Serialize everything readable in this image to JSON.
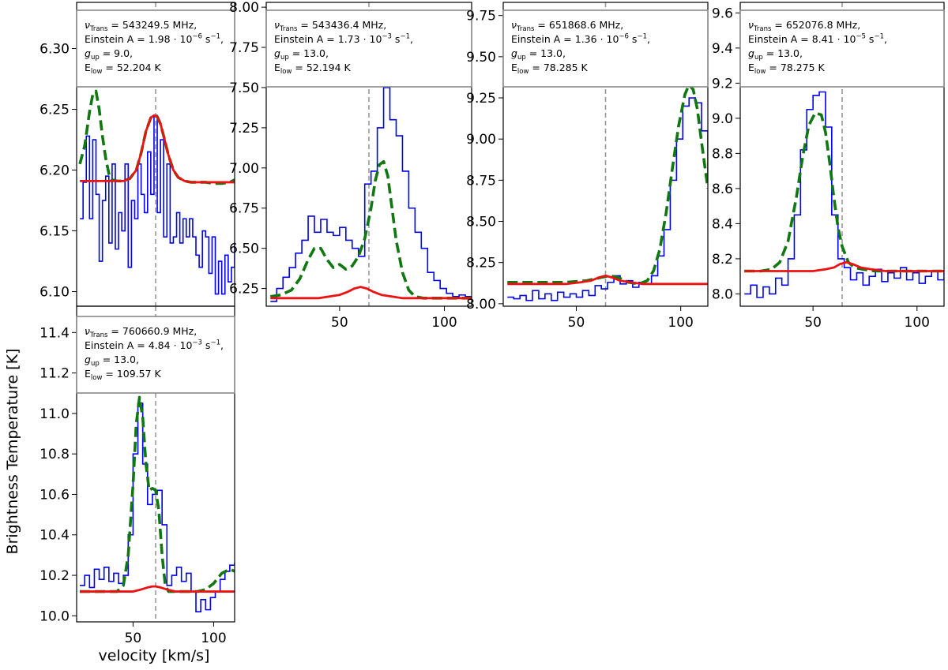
{
  "figure": {
    "ylabel": "Brightness Temperature [K]",
    "xlabel": "velocity [km/s]"
  },
  "colors": {
    "data": "#0000ee",
    "fit_total": "#117711",
    "fit_component": "#ee1111",
    "marker": "#999999",
    "frame": "#000000",
    "infobox_border": "#888888"
  },
  "chart_data": [
    {
      "type": "line",
      "id": "p1",
      "info": {
        "nu": "543249.5 MHz,",
        "einstein_mantissa": "1.98",
        "einstein_exp": "−6",
        "gup": "9.0,",
        "elow": "52.204 K"
      },
      "xlim": [
        15,
        113
      ],
      "ylim": [
        6.088,
        6.338
      ],
      "xticks": [],
      "yticks": [
        6.1,
        6.15,
        6.2,
        6.25,
        6.3
      ],
      "yticklabels": [
        "6.10",
        "6.15",
        "6.20",
        "6.25",
        "6.30"
      ],
      "vline": 64,
      "series": [
        {
          "name": "observed",
          "style": "step",
          "x": [
            17,
            19,
            21,
            23,
            25,
            27,
            29,
            31,
            33,
            35,
            37,
            39,
            41,
            43,
            45,
            47,
            49,
            51,
            53,
            55,
            57,
            59,
            61,
            63,
            65,
            67,
            69,
            71,
            73,
            75,
            77,
            79,
            81,
            83,
            85,
            87,
            89,
            91,
            93,
            95,
            97,
            99,
            101,
            103,
            105,
            107,
            109,
            111,
            113
          ],
          "y": [
            6.16,
            6.19,
            6.228,
            6.16,
            6.225,
            6.18,
            6.125,
            6.175,
            6.195,
            6.14,
            6.205,
            6.135,
            6.165,
            6.15,
            6.205,
            6.12,
            6.175,
            6.16,
            6.205,
            6.18,
            6.165,
            6.215,
            6.18,
            6.245,
            6.165,
            6.225,
            6.145,
            6.205,
            6.14,
            6.145,
            6.165,
            6.14,
            6.16,
            6.145,
            6.16,
            6.145,
            6.13,
            6.12,
            6.15,
            6.145,
            6.115,
            6.145,
            6.098,
            6.125,
            6.098,
            6.13,
            6.108,
            6.12,
            6.14
          ]
        },
        {
          "name": "fit-total",
          "style": "dash",
          "x": [
            17,
            20,
            23,
            25,
            27,
            29,
            31,
            33,
            35,
            37,
            40,
            44,
            48,
            52,
            55,
            58,
            61,
            63,
            65,
            67,
            69,
            72,
            75,
            78,
            82,
            86,
            90,
            95,
            100,
            105,
            110,
            113
          ],
          "y": [
            6.205,
            6.22,
            6.248,
            6.262,
            6.265,
            6.25,
            6.228,
            6.21,
            6.197,
            6.192,
            6.191,
            6.191,
            6.193,
            6.2,
            6.214,
            6.232,
            6.243,
            6.245,
            6.244,
            6.238,
            6.228,
            6.212,
            6.2,
            6.194,
            6.191,
            6.19,
            6.19,
            6.19,
            6.189,
            6.189,
            6.19,
            6.192
          ]
        },
        {
          "name": "fit-component",
          "style": "solid",
          "x": [
            17,
            25,
            35,
            44,
            48,
            52,
            55,
            58,
            61,
            63,
            65,
            67,
            69,
            72,
            75,
            78,
            82,
            86,
            90,
            100,
            113
          ],
          "y": [
            6.191,
            6.191,
            6.191,
            6.191,
            6.193,
            6.2,
            6.214,
            6.232,
            6.243,
            6.245,
            6.244,
            6.238,
            6.228,
            6.212,
            6.2,
            6.194,
            6.191,
            6.19,
            6.19,
            6.19,
            6.19
          ]
        }
      ]
    },
    {
      "type": "line",
      "id": "p2",
      "info": {
        "nu": "543436.4 MHz,",
        "einstein_mantissa": "1.73",
        "einstein_exp": "−3",
        "gup": "13.0,",
        "elow": "52.194 K"
      },
      "xlim": [
        15,
        113
      ],
      "ylim": [
        6.14,
        8.03
      ],
      "xticks": [
        50,
        100
      ],
      "xticklabels": [
        "50",
        "100"
      ],
      "yticks": [
        6.25,
        6.5,
        6.75,
        7.0,
        7.25,
        7.5,
        7.75,
        8.0
      ],
      "yticklabels": [
        "6.25",
        "6.50",
        "6.75",
        "7.00",
        "7.25",
        "7.50",
        "7.75",
        "8.00"
      ],
      "vline": 64,
      "series": [
        {
          "name": "observed",
          "style": "step",
          "x": [
            17,
            20,
            23,
            26,
            29,
            32,
            35,
            38,
            41,
            44,
            47,
            50,
            53,
            56,
            59,
            62,
            65,
            68,
            71,
            74,
            77,
            80,
            83,
            86,
            89,
            92,
            95,
            98,
            101,
            104,
            107,
            110,
            113
          ],
          "y": [
            6.17,
            6.25,
            6.32,
            6.38,
            6.47,
            6.55,
            6.7,
            6.6,
            6.68,
            6.6,
            6.58,
            6.63,
            6.55,
            6.5,
            6.45,
            6.9,
            6.98,
            7.25,
            7.5,
            7.3,
            7.2,
            6.98,
            6.75,
            6.6,
            6.5,
            6.35,
            6.3,
            6.25,
            6.22,
            6.2,
            6.21,
            6.2,
            6.19
          ]
        },
        {
          "name": "fit-total",
          "style": "dash",
          "x": [
            17,
            22,
            27,
            31,
            35,
            38,
            41,
            44,
            47,
            50,
            53,
            56,
            59,
            62,
            65,
            67,
            69,
            71,
            73,
            75,
            77,
            80,
            83,
            86,
            90,
            95,
            100,
            105,
            113
          ],
          "y": [
            6.2,
            6.21,
            6.24,
            6.31,
            6.43,
            6.5,
            6.5,
            6.43,
            6.38,
            6.4,
            6.37,
            6.39,
            6.45,
            6.56,
            6.75,
            6.92,
            7.02,
            7.04,
            6.95,
            6.75,
            6.55,
            6.35,
            6.24,
            6.2,
            6.19,
            6.19,
            6.19,
            6.19,
            6.19
          ]
        },
        {
          "name": "fit-component",
          "style": "solid",
          "x": [
            17,
            30,
            40,
            45,
            50,
            54,
            57,
            60,
            63,
            66,
            70,
            75,
            80,
            90,
            113
          ],
          "y": [
            6.19,
            6.19,
            6.19,
            6.2,
            6.21,
            6.23,
            6.25,
            6.26,
            6.25,
            6.23,
            6.21,
            6.2,
            6.19,
            6.19,
            6.19
          ]
        }
      ]
    },
    {
      "type": "line",
      "id": "p3",
      "info": {
        "nu": "651868.6 MHz,",
        "einstein_mantissa": "1.36",
        "einstein_exp": "−6",
        "gup": "13.0,",
        "elow": "78.285 K"
      },
      "xlim": [
        15,
        113
      ],
      "ylim": [
        7.985,
        9.83
      ],
      "xticks": [
        50,
        100
      ],
      "xticklabels": [
        "50",
        "100"
      ],
      "yticks": [
        8.0,
        8.25,
        8.5,
        8.75,
        9.0,
        9.25,
        9.5,
        9.75
      ],
      "yticklabels": [
        "8.00",
        "8.25",
        "8.50",
        "8.75",
        "9.00",
        "9.25",
        "9.50",
        "9.75"
      ],
      "vline": 64,
      "series": [
        {
          "name": "observed",
          "style": "step",
          "x": [
            17,
            20,
            23,
            26,
            29,
            32,
            35,
            38,
            41,
            44,
            47,
            50,
            53,
            56,
            59,
            62,
            65,
            68,
            71,
            74,
            77,
            80,
            83,
            86,
            89,
            92,
            95,
            98,
            101,
            104,
            107,
            110,
            113
          ],
          "y": [
            8.04,
            8.03,
            8.05,
            8.02,
            8.08,
            8.03,
            8.06,
            8.02,
            8.07,
            8.04,
            8.06,
            8.04,
            8.08,
            8.05,
            8.11,
            8.09,
            8.13,
            8.17,
            8.12,
            8.14,
            8.1,
            8.13,
            8.12,
            8.17,
            8.29,
            8.45,
            8.75,
            9.0,
            9.2,
            9.25,
            9.22,
            9.05,
            8.75
          ]
        },
        {
          "name": "fit-total",
          "style": "dash",
          "x": [
            17,
            30,
            45,
            55,
            62,
            66,
            70,
            75,
            80,
            84,
            87,
            90,
            93,
            96,
            99,
            102,
            104,
            106,
            108,
            110,
            113
          ],
          "y": [
            8.13,
            8.13,
            8.13,
            8.14,
            8.16,
            8.17,
            8.16,
            8.13,
            8.12,
            8.14,
            8.2,
            8.33,
            8.55,
            8.82,
            9.08,
            9.27,
            9.33,
            9.3,
            9.18,
            8.98,
            8.7
          ]
        },
        {
          "name": "fit-component",
          "style": "solid",
          "x": [
            17,
            30,
            45,
            52,
            57,
            61,
            64,
            67,
            71,
            76,
            82,
            90,
            113
          ],
          "y": [
            8.12,
            8.12,
            8.12,
            8.13,
            8.14,
            8.16,
            8.17,
            8.16,
            8.14,
            8.13,
            8.12,
            8.12,
            8.12
          ]
        }
      ]
    },
    {
      "type": "line",
      "id": "p4",
      "info": {
        "nu": "652076.8 MHz,",
        "einstein_mantissa": "8.41",
        "einstein_exp": "−5",
        "gup": "13.0,",
        "elow": "78.275 K"
      },
      "xlim": [
        15,
        113
      ],
      "ylim": [
        7.93,
        9.66
      ],
      "xticks": [
        50,
        100
      ],
      "xticklabels": [
        "50",
        "100"
      ],
      "yticks": [
        8.0,
        8.2,
        8.4,
        8.6,
        8.8,
        9.0,
        9.2,
        9.4,
        9.6
      ],
      "yticklabels": [
        "8.0",
        "8.2",
        "8.4",
        "8.6",
        "8.8",
        "9.0",
        "9.2",
        "9.4",
        "9.6"
      ],
      "vline": 64,
      "series": [
        {
          "name": "observed",
          "style": "step",
          "x": [
            17,
            20,
            23,
            26,
            29,
            32,
            35,
            38,
            41,
            44,
            47,
            50,
            53,
            56,
            59,
            62,
            65,
            68,
            71,
            74,
            77,
            80,
            83,
            86,
            89,
            92,
            95,
            98,
            101,
            104,
            107,
            110,
            113
          ],
          "y": [
            8.0,
            8.05,
            7.98,
            8.04,
            8.0,
            8.09,
            8.05,
            8.2,
            8.45,
            8.82,
            9.05,
            9.13,
            9.15,
            8.95,
            8.45,
            8.2,
            8.15,
            8.08,
            8.12,
            8.05,
            8.1,
            8.14,
            8.07,
            8.12,
            8.09,
            8.15,
            8.08,
            8.12,
            8.06,
            8.1,
            8.13,
            8.08,
            8.12
          ]
        },
        {
          "name": "fit-total",
          "style": "dash",
          "x": [
            17,
            25,
            30,
            34,
            38,
            42,
            45,
            48,
            51,
            54,
            56,
            58,
            60,
            62,
            64,
            67,
            70,
            74,
            80,
            90,
            100,
            113
          ],
          "y": [
            8.13,
            8.13,
            8.14,
            8.18,
            8.3,
            8.55,
            8.78,
            8.96,
            9.03,
            9.02,
            8.92,
            8.75,
            8.55,
            8.38,
            8.27,
            8.18,
            8.15,
            8.14,
            8.13,
            8.13,
            8.13,
            8.13
          ]
        },
        {
          "name": "fit-component",
          "style": "solid",
          "x": [
            17,
            35,
            50,
            56,
            60,
            63,
            66,
            69,
            73,
            78,
            85,
            95,
            113
          ],
          "y": [
            8.13,
            8.13,
            8.13,
            8.14,
            8.15,
            8.17,
            8.18,
            8.17,
            8.15,
            8.14,
            8.13,
            8.13,
            8.13
          ]
        }
      ]
    },
    {
      "type": "line",
      "id": "p5",
      "info": {
        "nu": "760660.9 MHz,",
        "einstein_mantissa": "4.84",
        "einstein_exp": "−3",
        "gup": "13.0,",
        "elow": "109.57 K"
      },
      "xlim": [
        15,
        113
      ],
      "ylim": [
        9.97,
        11.53
      ],
      "xticks": [
        50,
        100
      ],
      "xticklabels": [
        "50",
        "100"
      ],
      "yticks": [
        10.0,
        10.2,
        10.4,
        10.6,
        10.8,
        11.0,
        11.2,
        11.4
      ],
      "yticklabels": [
        "10.0",
        "10.2",
        "10.4",
        "10.6",
        "10.8",
        "11.0",
        "11.2",
        "11.4"
      ],
      "vline": 64,
      "series": [
        {
          "name": "observed",
          "style": "step",
          "x": [
            17,
            20,
            23,
            26,
            29,
            32,
            35,
            38,
            41,
            44,
            47,
            50,
            53,
            56,
            59,
            62,
            65,
            68,
            71,
            74,
            77,
            80,
            83,
            86,
            89,
            92,
            95,
            98,
            101,
            104,
            107,
            110,
            113
          ],
          "y": [
            10.15,
            10.2,
            10.14,
            10.23,
            10.18,
            10.24,
            10.17,
            10.21,
            10.16,
            10.2,
            10.4,
            10.8,
            11.05,
            10.75,
            10.55,
            10.6,
            10.62,
            10.45,
            10.15,
            10.2,
            10.24,
            10.17,
            10.21,
            10.12,
            10.02,
            10.08,
            10.03,
            10.09,
            10.12,
            10.18,
            10.22,
            10.25,
            10.26
          ]
        },
        {
          "name": "fit-total",
          "style": "dash",
          "x": [
            17,
            30,
            40,
            44,
            47,
            50,
            52,
            54,
            56,
            58,
            60,
            62,
            64,
            66,
            68,
            70,
            72,
            75,
            80,
            90,
            95,
            100,
            105,
            110,
            113
          ],
          "y": [
            10.12,
            10.12,
            10.12,
            10.15,
            10.3,
            10.65,
            10.95,
            11.08,
            10.98,
            10.75,
            10.62,
            10.63,
            10.62,
            10.52,
            10.3,
            10.15,
            10.12,
            10.12,
            10.12,
            10.12,
            10.13,
            10.16,
            10.21,
            10.23,
            10.22
          ]
        },
        {
          "name": "fit-component",
          "style": "solid",
          "x": [
            17,
            40,
            50,
            55,
            59,
            62,
            64,
            67,
            71,
            76,
            85,
            113
          ],
          "y": [
            10.12,
            10.12,
            10.12,
            10.13,
            10.14,
            10.145,
            10.145,
            10.14,
            10.13,
            10.12,
            10.12,
            10.12
          ]
        }
      ]
    }
  ]
}
